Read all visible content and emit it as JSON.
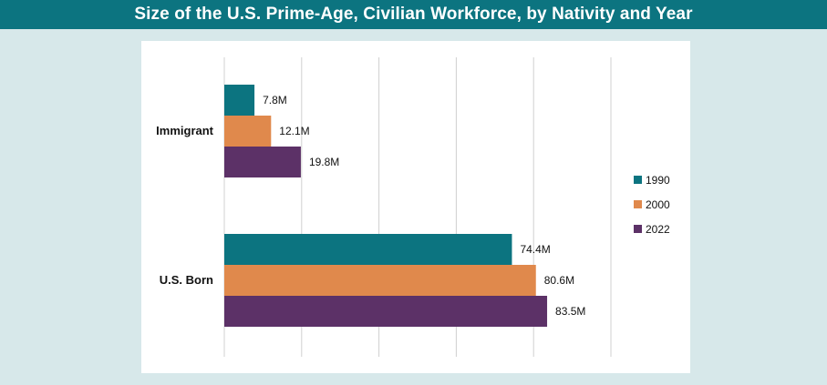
{
  "header": {
    "title": "Size of the U.S. Prime-Age, Civilian Workforce, by Nativity and Year"
  },
  "colors": {
    "title_bg": "#0c7480",
    "page_bg": "#d7e8ea",
    "series_1990": "#0c7480",
    "series_2000": "#e0894c",
    "series_2022": "#5c3167",
    "grid": "#d0d0d0"
  },
  "chart_data": {
    "type": "bar",
    "orientation": "horizontal",
    "title": "Size of the U.S. Prime-Age, Civilian Workforce, by Nativity and Year",
    "categories": [
      "Immigrant",
      "U.S. Born"
    ],
    "series": [
      {
        "name": "1990",
        "values": [
          7.8,
          74.4
        ],
        "labels": [
          "7.8M",
          "74.4M"
        ],
        "color": "#0c7480"
      },
      {
        "name": "2000",
        "values": [
          12.1,
          80.6
        ],
        "labels": [
          "12.1M",
          "80.6M"
        ],
        "color": "#e0894c"
      },
      {
        "name": "2022",
        "values": [
          19.8,
          83.5
        ],
        "labels": [
          "19.8M",
          "83.5M"
        ],
        "color": "#5c3167"
      }
    ],
    "xlim": [
      0,
      100
    ],
    "grid": true,
    "unit": "M",
    "legend_position": "right"
  }
}
